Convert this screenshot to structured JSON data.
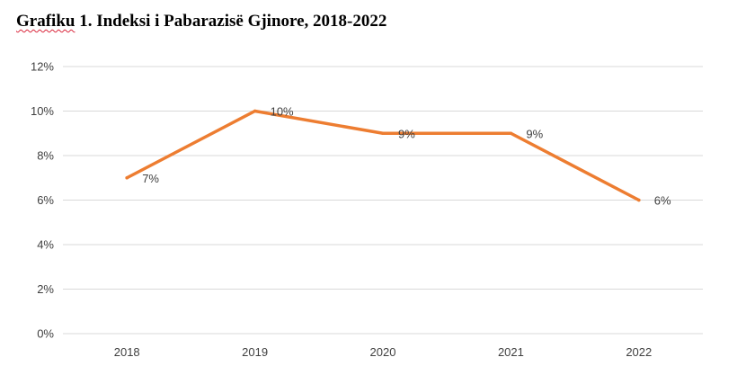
{
  "title": {
    "lead": "Grafiku",
    "rest": " 1. Indeksi i Pabarazisë Gjinore, 2018-2022"
  },
  "chart_data": {
    "type": "line",
    "title": "Grafiku 1. Indeksi i Pabarazisë Gjinore, 2018-2022",
    "xlabel": "",
    "ylabel": "",
    "categories": [
      "2018",
      "2019",
      "2020",
      "2021",
      "2022"
    ],
    "series": [
      {
        "values": [
          7,
          10,
          9,
          9,
          6
        ],
        "labels": [
          "7%",
          "10%",
          "9%",
          "9%",
          "6%"
        ],
        "color": "#ED7D31"
      }
    ],
    "ylim": [
      0,
      12
    ],
    "yticks": [
      0,
      2,
      4,
      6,
      8,
      10,
      12
    ],
    "ytick_labels": [
      "0%",
      "2%",
      "4%",
      "6%",
      "8%",
      "10%",
      "12%"
    ],
    "grid": "horizontal",
    "legend": "none",
    "gridline_color": "#D9D9D9"
  }
}
